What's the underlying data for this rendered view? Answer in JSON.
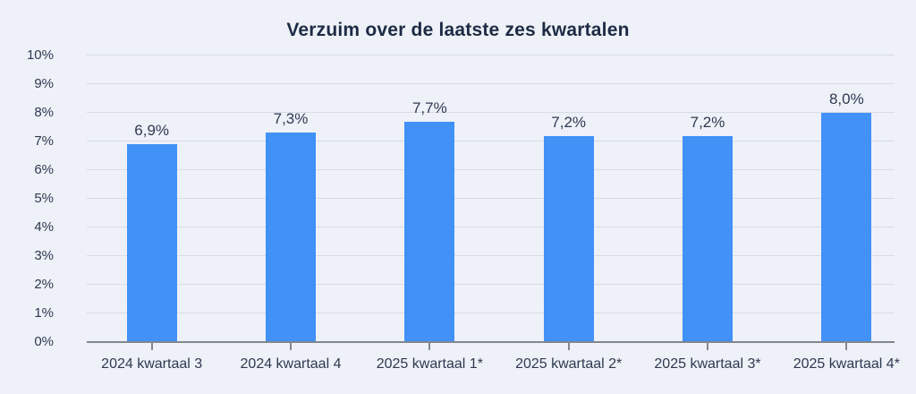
{
  "chart_data": {
    "type": "bar",
    "title": "Verzuim over de laatste zes kwartalen",
    "categories": [
      "2024 kwartaal 3",
      "2024 kwartaal 4",
      "2025 kwartaal 1*",
      "2025 kwartaal 2*",
      "2025 kwartaal 3*",
      "2025 kwartaal 4*"
    ],
    "values": [
      6.9,
      7.3,
      7.7,
      7.2,
      7.2,
      8.0
    ],
    "value_labels": [
      "6,9%",
      "7,3%",
      "7,7%",
      "7,2%",
      "7,2%",
      "8,0%"
    ],
    "y_tick_labels": [
      "0%",
      "1%",
      "2%",
      "3%",
      "4%",
      "5%",
      "6%",
      "7%",
      "8%",
      "9%",
      "10%"
    ],
    "xlabel": "",
    "ylabel": "",
    "ylim": [
      0,
      10
    ],
    "grid": true,
    "legend": "none",
    "colors": {
      "background": "#eef1f8",
      "bar": "#4191f7",
      "gridline": "#d7dbe6",
      "axis": "#82868e",
      "title": "#1d2b45",
      "label": "#2e3950"
    }
  }
}
